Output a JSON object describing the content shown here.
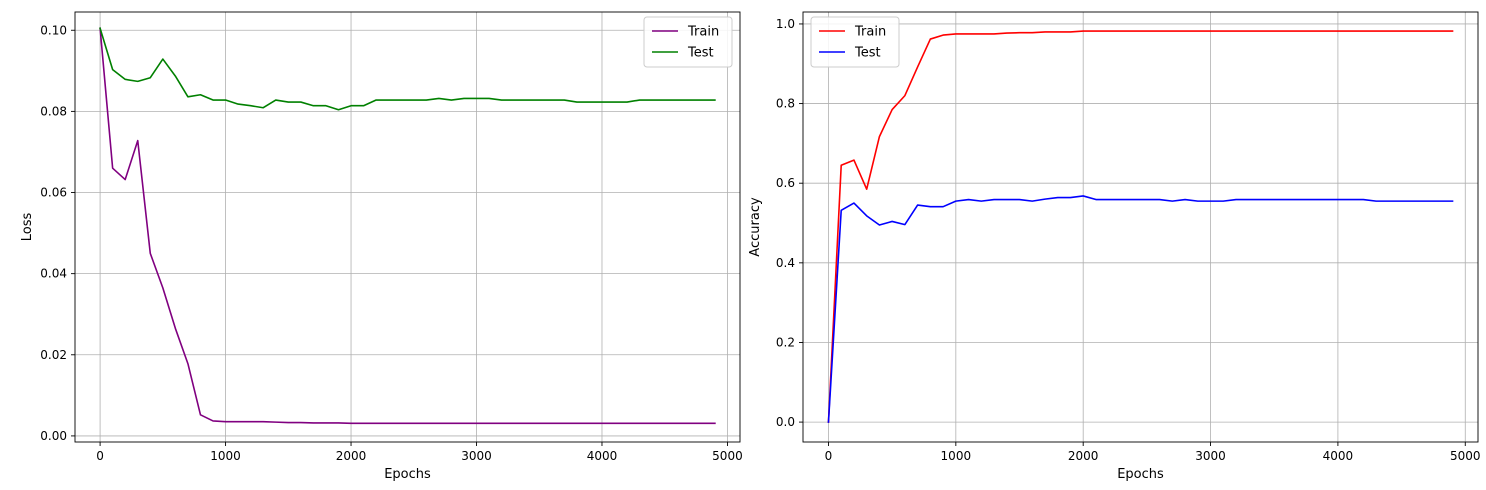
{
  "chart_data": [
    {
      "type": "line",
      "xlabel": "Epochs",
      "ylabel": "Loss",
      "xlim": [
        -200,
        5100
      ],
      "ylim": [
        -0.0015,
        0.1045
      ],
      "xticks": [
        0,
        1000,
        2000,
        3000,
        4000,
        5000
      ],
      "xtick_labels": [
        "0",
        "1000",
        "2000",
        "3000",
        "4000",
        "5000"
      ],
      "yticks": [
        0.0,
        0.02,
        0.04,
        0.06,
        0.08,
        0.1
      ],
      "ytick_labels": [
        "0.00",
        "0.02",
        "0.04",
        "0.06",
        "0.08",
        "0.10"
      ],
      "grid": true,
      "legend_position": "top-right",
      "series": [
        {
          "name": "Train",
          "color": "#800080",
          "x": [
            0,
            100,
            200,
            300,
            400,
            500,
            600,
            700,
            800,
            900,
            1000,
            1100,
            1200,
            1300,
            1400,
            1500,
            1600,
            1700,
            1800,
            1900,
            2000,
            2100,
            2200,
            2300,
            2400,
            2500,
            2600,
            2700,
            2800,
            2900,
            3000,
            3100,
            3200,
            3300,
            3400,
            3500,
            3600,
            3700,
            3800,
            3900,
            4000,
            4100,
            4200,
            4300,
            4400,
            4500,
            4600,
            4700,
            4800,
            4900
          ],
          "values": [
            0.1005,
            0.066,
            0.0632,
            0.0728,
            0.045,
            0.0365,
            0.0265,
            0.0178,
            0.0052,
            0.0037,
            0.0035,
            0.0035,
            0.0035,
            0.0035,
            0.0034,
            0.0033,
            0.0033,
            0.0032,
            0.0032,
            0.0032,
            0.0031,
            0.0031,
            0.0031,
            0.0031,
            0.0031,
            0.0031,
            0.0031,
            0.0031,
            0.0031,
            0.0031,
            0.0031,
            0.0031,
            0.0031,
            0.0031,
            0.0031,
            0.0031,
            0.0031,
            0.0031,
            0.0031,
            0.0031,
            0.0031,
            0.0031,
            0.0031,
            0.0031,
            0.0031,
            0.0031,
            0.0031,
            0.0031,
            0.0031,
            0.0031
          ]
        },
        {
          "name": "Test",
          "color": "#008000",
          "x": [
            0,
            100,
            200,
            300,
            400,
            500,
            600,
            700,
            800,
            900,
            1000,
            1100,
            1200,
            1300,
            1400,
            1500,
            1600,
            1700,
            1800,
            1900,
            2000,
            2100,
            2200,
            2300,
            2400,
            2500,
            2600,
            2700,
            2800,
            2900,
            3000,
            3100,
            3200,
            3300,
            3400,
            3500,
            3600,
            3700,
            3800,
            3900,
            4000,
            4100,
            4200,
            4300,
            4400,
            4500,
            4600,
            4700,
            4800,
            4900
          ],
          "values": [
            0.1005,
            0.0903,
            0.0879,
            0.0874,
            0.0883,
            0.0929,
            0.0887,
            0.0836,
            0.0841,
            0.0828,
            0.0828,
            0.0818,
            0.0814,
            0.0809,
            0.0828,
            0.0823,
            0.0823,
            0.0814,
            0.0814,
            0.0804,
            0.0814,
            0.0814,
            0.0828,
            0.0828,
            0.0828,
            0.0828,
            0.0828,
            0.0832,
            0.0828,
            0.0832,
            0.0832,
            0.0832,
            0.0828,
            0.0828,
            0.0828,
            0.0828,
            0.0828,
            0.0828,
            0.0823,
            0.0823,
            0.0823,
            0.0823,
            0.0823,
            0.0828,
            0.0828,
            0.0828,
            0.0828,
            0.0828,
            0.0828,
            0.0828
          ]
        }
      ]
    },
    {
      "type": "line",
      "xlabel": "Epochs",
      "ylabel": "Accuracy",
      "xlim": [
        -200,
        5100
      ],
      "ylim": [
        -0.05,
        1.03
      ],
      "xticks": [
        0,
        1000,
        2000,
        3000,
        4000,
        5000
      ],
      "xtick_labels": [
        "0",
        "1000",
        "2000",
        "3000",
        "4000",
        "5000"
      ],
      "yticks": [
        0.0,
        0.2,
        0.4,
        0.6,
        0.8,
        1.0
      ],
      "ytick_labels": [
        "0.0",
        "0.2",
        "0.4",
        "0.6",
        "0.8",
        "1.0"
      ],
      "grid": true,
      "legend_position": "top-left",
      "series": [
        {
          "name": "Train",
          "color": "#ff0000",
          "x": [
            0,
            100,
            200,
            300,
            400,
            500,
            600,
            700,
            800,
            900,
            1000,
            1100,
            1200,
            1300,
            1400,
            1500,
            1600,
            1700,
            1800,
            1900,
            2000,
            2100,
            2200,
            2300,
            2400,
            2500,
            2600,
            2700,
            2800,
            2900,
            3000,
            3100,
            3200,
            3300,
            3400,
            3500,
            3600,
            3700,
            3800,
            3900,
            4000,
            4100,
            4200,
            4300,
            4400,
            4500,
            4600,
            4700,
            4800,
            4900
          ],
          "values": [
            0.0,
            0.645,
            0.658,
            0.585,
            0.717,
            0.785,
            0.82,
            0.892,
            0.962,
            0.972,
            0.975,
            0.975,
            0.975,
            0.975,
            0.977,
            0.978,
            0.978,
            0.98,
            0.98,
            0.98,
            0.982,
            0.982,
            0.982,
            0.982,
            0.982,
            0.982,
            0.982,
            0.982,
            0.982,
            0.982,
            0.982,
            0.982,
            0.982,
            0.982,
            0.982,
            0.982,
            0.982,
            0.982,
            0.982,
            0.982,
            0.982,
            0.982,
            0.982,
            0.982,
            0.982,
            0.982,
            0.982,
            0.982,
            0.982,
            0.982
          ]
        },
        {
          "name": "Test",
          "color": "#0000ff",
          "x": [
            0,
            100,
            200,
            300,
            400,
            500,
            600,
            700,
            800,
            900,
            1000,
            1100,
            1200,
            1300,
            1400,
            1500,
            1600,
            1700,
            1800,
            1900,
            2000,
            2100,
            2200,
            2300,
            2400,
            2500,
            2600,
            2700,
            2800,
            2900,
            3000,
            3100,
            3200,
            3300,
            3400,
            3500,
            3600,
            3700,
            3800,
            3900,
            4000,
            4100,
            4200,
            4300,
            4400,
            4500,
            4600,
            4700,
            4800,
            4900
          ],
          "values": [
            0.0,
            0.532,
            0.55,
            0.518,
            0.495,
            0.504,
            0.496,
            0.545,
            0.541,
            0.541,
            0.555,
            0.559,
            0.555,
            0.559,
            0.559,
            0.559,
            0.555,
            0.56,
            0.564,
            0.564,
            0.568,
            0.559,
            0.559,
            0.559,
            0.559,
            0.559,
            0.559,
            0.555,
            0.559,
            0.555,
            0.555,
            0.555,
            0.559,
            0.559,
            0.559,
            0.559,
            0.559,
            0.559,
            0.559,
            0.559,
            0.559,
            0.559,
            0.559,
            0.555,
            0.555,
            0.555,
            0.555,
            0.555,
            0.555,
            0.555
          ]
        }
      ]
    }
  ]
}
